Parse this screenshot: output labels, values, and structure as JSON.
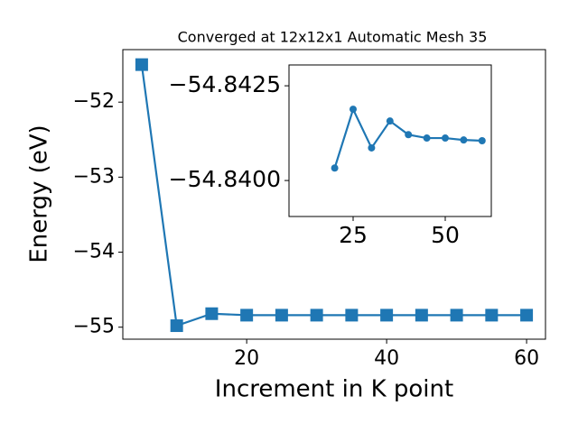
{
  "chart_data": [
    {
      "type": "line",
      "title": "Converged at 12x12x1 Automatic Mesh 35",
      "x_label": "Increment in K point",
      "y_label": "Energy (eV)",
      "x": [
        5,
        10,
        15,
        20,
        25,
        30,
        35,
        40,
        45,
        50,
        55,
        60
      ],
      "series": [
        {
          "color": "#1f77b4",
          "marker": "square",
          "values": [
            -51.5,
            -54.98,
            -54.82,
            -54.84,
            -54.84,
            -54.84,
            -54.84,
            -54.84,
            -54.84,
            -54.84,
            -54.84,
            -54.84
          ]
        }
      ],
      "xlim": [
        2.3,
        62.7
      ],
      "xticks": [
        20,
        40,
        60
      ],
      "ylim": [
        -55.16,
        -51.3
      ],
      "yticks": [
        {
          "value": -55,
          "label": "−55"
        },
        {
          "value": -54,
          "label": "−54"
        },
        {
          "value": -53,
          "label": "−53"
        },
        {
          "value": -52,
          "label": "−52"
        }
      ]
    },
    {
      "type": "line",
      "x": [
        20,
        25,
        30,
        35,
        40,
        45,
        50,
        55,
        60
      ],
      "series": [
        {
          "color": "#1f77b4",
          "marker": "circle",
          "values": [
            -54.84033,
            -54.84188,
            -54.84086,
            -54.84157,
            -54.84121,
            -54.84112,
            -54.84112,
            -54.84107,
            -54.84105
          ]
        }
      ],
      "xlim": [
        7.6,
        62.5
      ],
      "xticks": [
        25,
        50
      ],
      "ylim": [
        -54.83905,
        -54.84305
      ],
      "yticks": [
        {
          "value": -54.84,
          "label": "−54.8400"
        },
        {
          "value": -54.8425,
          "label": "−54.8425"
        }
      ]
    }
  ]
}
